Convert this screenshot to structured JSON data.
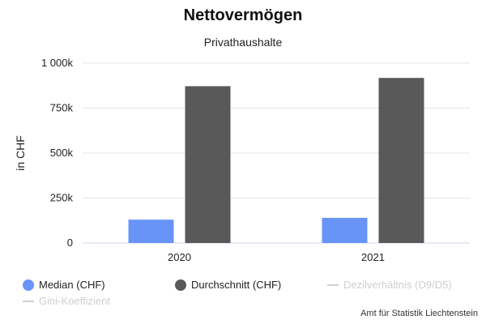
{
  "chart_data": {
    "type": "bar",
    "title": "Nettovermögen",
    "subtitle": "Privathaushalte",
    "ylabel": "in CHF",
    "xlabel": "",
    "categories": [
      "2020",
      "2021"
    ],
    "ylim": [
      0,
      1000000
    ],
    "yticks": [
      0,
      250000,
      500000,
      750000,
      1000000
    ],
    "ytick_labels": [
      "0",
      "250k",
      "500k",
      "750k",
      "1 000k"
    ],
    "grid": true,
    "legend_position": "bottom",
    "series": [
      {
        "name": "Median (CHF)",
        "color": "#6994f7",
        "values": [
          130000,
          140000
        ]
      },
      {
        "name": "Durchschnitt (CHF)",
        "color": "#595959",
        "values": [
          872000,
          918000
        ]
      }
    ],
    "hidden_series": [
      {
        "name": "Dezilverhältnis (D9/D5)"
      },
      {
        "name": "Gini-Koeffizient"
      }
    ]
  },
  "legend": {
    "items": [
      {
        "label": "Median (CHF)",
        "color": "#6994f7",
        "visible": true
      },
      {
        "label": "Durchschnitt (CHF)",
        "color": "#595959",
        "visible": true
      },
      {
        "label": "Dezilverhältnis (D9/D5)",
        "color": "#cfcfcf",
        "visible": false
      },
      {
        "label": "Gini-Koeffizient",
        "color": "#cfcfcf",
        "visible": false
      }
    ]
  },
  "credits": "Amt für Statistik Liechtenstein"
}
